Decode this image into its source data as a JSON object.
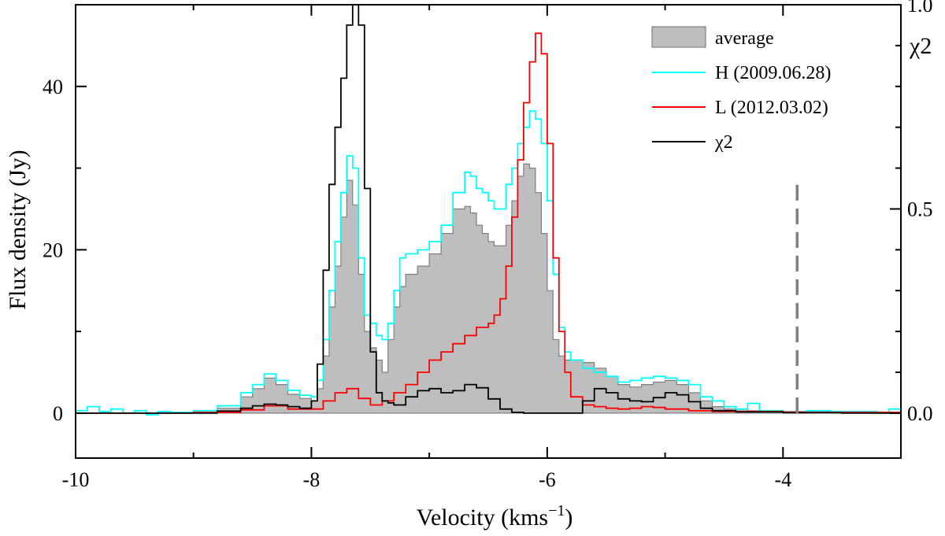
{
  "chart_data": {
    "type": "line",
    "step": true,
    "xlabel": "Velocity (kms",
    "xlabel_sup": "−1",
    "xlabel_close": ")",
    "ylabel": "Flux density (Jy)",
    "y2label": "χ2",
    "xlim": [
      -10,
      -3
    ],
    "ylim": [
      -5.5,
      50
    ],
    "y2lim": [
      -0.11,
      1.0
    ],
    "x_ticks": [
      -10,
      -8,
      -6,
      -4
    ],
    "x_tick_labels": [
      "-10",
      "-8",
      "-6",
      "-4"
    ],
    "y_ticks": [
      0,
      20,
      40
    ],
    "y_tick_labels": [
      "0",
      "20",
      "40"
    ],
    "y2_ticks": [
      0.0,
      0.5,
      1.0
    ],
    "y2_tick_labels": [
      "0.0",
      "0.5",
      "1.0"
    ],
    "vline": {
      "x": -3.88,
      "ymin": 0,
      "ymax": 28.5,
      "color": "#808080",
      "dashed": true
    },
    "legend_position": "top-right",
    "series": [
      {
        "name": "average",
        "style": "filled",
        "color": "#bebebe",
        "edge": "#7f7f7f",
        "x": [
          -10.0,
          -9.5,
          -9.0,
          -8.8,
          -8.6,
          -8.5,
          -8.4,
          -8.3,
          -8.2,
          -8.1,
          -8.0,
          -7.95,
          -7.9,
          -7.85,
          -7.8,
          -7.75,
          -7.7,
          -7.65,
          -7.6,
          -7.55,
          -7.5,
          -7.45,
          -7.4,
          -7.35,
          -7.3,
          -7.25,
          -7.2,
          -7.1,
          -7.0,
          -6.9,
          -6.8,
          -6.7,
          -6.65,
          -6.6,
          -6.55,
          -6.5,
          -6.45,
          -6.4,
          -6.35,
          -6.3,
          -6.25,
          -6.2,
          -6.15,
          -6.1,
          -6.05,
          -6.0,
          -5.95,
          -5.9,
          -5.85,
          -5.8,
          -5.7,
          -5.6,
          -5.5,
          -5.4,
          -5.3,
          -5.2,
          -5.1,
          -5.0,
          -4.9,
          -4.8,
          -4.7,
          -4.6,
          -4.5,
          -4.3,
          -4.0,
          -3.5,
          -3.0
        ],
        "y": [
          0,
          0,
          0.1,
          0.6,
          2.0,
          3.0,
          4.3,
          3.5,
          2.3,
          1.8,
          1.5,
          3.0,
          7.0,
          13.0,
          18.0,
          24.0,
          28.5,
          25.5,
          17.0,
          10.0,
          8.0,
          6.5,
          5.0,
          9.0,
          13.0,
          15.5,
          17.0,
          18.0,
          19.5,
          22.0,
          25.0,
          25.3,
          24.5,
          23.0,
          22.0,
          21.0,
          20.5,
          20.5,
          23.0,
          26.0,
          29.0,
          30.5,
          30.0,
          27.0,
          22.0,
          15.0,
          9.0,
          7.0,
          6.5,
          6.5,
          6.2,
          5.5,
          4.5,
          3.5,
          3.2,
          3.5,
          3.8,
          4.0,
          3.5,
          2.5,
          1.5,
          0.8,
          0.5,
          0.3,
          0.2,
          0.1,
          0.1
        ]
      },
      {
        "name": "H (2009.06.28)",
        "style": "step",
        "color": "#00ffff",
        "x": [
          -10.0,
          -9.9,
          -9.8,
          -9.7,
          -9.6,
          -9.5,
          -9.4,
          -9.3,
          -9.2,
          -9.0,
          -8.8,
          -8.6,
          -8.5,
          -8.4,
          -8.3,
          -8.2,
          -8.1,
          -8.0,
          -7.95,
          -7.9,
          -7.85,
          -7.8,
          -7.75,
          -7.7,
          -7.65,
          -7.6,
          -7.55,
          -7.5,
          -7.45,
          -7.4,
          -7.35,
          -7.3,
          -7.25,
          -7.2,
          -7.1,
          -7.0,
          -6.9,
          -6.8,
          -6.7,
          -6.65,
          -6.6,
          -6.55,
          -6.5,
          -6.45,
          -6.4,
          -6.35,
          -6.3,
          -6.25,
          -6.2,
          -6.15,
          -6.1,
          -6.05,
          -6.0,
          -5.95,
          -5.9,
          -5.85,
          -5.8,
          -5.7,
          -5.6,
          -5.5,
          -5.4,
          -5.3,
          -5.2,
          -5.1,
          -5.0,
          -4.9,
          -4.8,
          -4.7,
          -4.6,
          -4.5,
          -4.4,
          -4.3,
          -4.2,
          -4.0,
          -3.8,
          -3.6,
          -3.4,
          -3.2,
          -3.1,
          -3.0
        ],
        "y": [
          0.3,
          0.8,
          0.2,
          0.5,
          0.0,
          0.3,
          -0.2,
          0.2,
          0.1,
          0.3,
          0.9,
          2.5,
          3.5,
          4.8,
          4.0,
          2.8,
          2.2,
          2.0,
          4.0,
          9.0,
          15.0,
          21.0,
          27.0,
          31.5,
          30.0,
          19.0,
          12.0,
          11.0,
          9.5,
          9.0,
          11.0,
          15.0,
          19.0,
          19.5,
          20.0,
          21.0,
          23.0,
          27.0,
          29.5,
          29.0,
          27.5,
          27.0,
          26.0,
          25.0,
          25.0,
          28.0,
          30.0,
          33.0,
          35.0,
          37.0,
          36.0,
          33.0,
          26.0,
          17.0,
          10.5,
          7.5,
          6.5,
          5.5,
          5.0,
          4.5,
          3.8,
          4.0,
          4.3,
          4.5,
          4.3,
          4.0,
          3.5,
          2.0,
          1.5,
          0.8,
          0.5,
          1.2,
          0.3,
          0.1,
          0.3,
          0.2,
          0.2,
          0.1,
          0.5,
          0.3
        ]
      },
      {
        "name": "L (2012.03.02)",
        "style": "step",
        "color": "#ff0000",
        "x": [
          -10.0,
          -9.0,
          -8.6,
          -8.4,
          -8.2,
          -8.0,
          -7.9,
          -7.8,
          -7.7,
          -7.6,
          -7.5,
          -7.4,
          -7.3,
          -7.2,
          -7.1,
          -7.0,
          -6.9,
          -6.8,
          -6.7,
          -6.6,
          -6.5,
          -6.45,
          -6.4,
          -6.35,
          -6.3,
          -6.25,
          -6.2,
          -6.15,
          -6.1,
          -6.05,
          -6.0,
          -5.95,
          -5.9,
          -5.85,
          -5.8,
          -5.7,
          -5.6,
          -5.5,
          -5.4,
          -5.3,
          -5.2,
          -5.1,
          -5.0,
          -4.9,
          -4.8,
          -4.6,
          -4.4,
          -4.0,
          -3.5,
          -3.0
        ],
        "y": [
          0,
          0.1,
          0.4,
          0.9,
          0.5,
          0.5,
          1.5,
          2.5,
          3.0,
          1.8,
          1.0,
          1.5,
          2.5,
          3.5,
          5.0,
          6.5,
          7.5,
          8.5,
          9.5,
          10.5,
          11.0,
          12.0,
          14.0,
          18.0,
          24.0,
          31.0,
          38.0,
          43.0,
          46.5,
          44.0,
          33.0,
          19.0,
          10.0,
          5.0,
          2.0,
          1.0,
          0.8,
          0.6,
          0.5,
          0.6,
          0.8,
          0.7,
          0.5,
          0.5,
          0.3,
          0.2,
          0.2,
          0.1,
          0.1,
          0.1
        ]
      },
      {
        "name": "χ2",
        "style": "step",
        "color": "#000000",
        "axis": "right",
        "x": [
          -10.0,
          -9.0,
          -8.8,
          -8.6,
          -8.5,
          -8.4,
          -8.3,
          -8.2,
          -8.1,
          -8.0,
          -7.95,
          -7.9,
          -7.85,
          -7.8,
          -7.75,
          -7.7,
          -7.65,
          -7.6,
          -7.55,
          -7.5,
          -7.45,
          -7.4,
          -7.35,
          -7.3,
          -7.2,
          -7.1,
          -7.0,
          -6.9,
          -6.8,
          -6.7,
          -6.6,
          -6.5,
          -6.4,
          -6.3,
          -6.2,
          -6.0,
          -5.8,
          -5.7,
          -5.6,
          -5.5,
          -5.4,
          -5.3,
          -5.2,
          -5.1,
          -5.0,
          -4.9,
          -4.8,
          -4.7,
          -4.6,
          -4.4,
          -4.0,
          -3.5,
          -3.0
        ],
        "y": [
          0.0,
          0.0,
          0.005,
          0.012,
          0.018,
          0.022,
          0.02,
          0.016,
          0.012,
          0.03,
          0.12,
          0.35,
          0.56,
          0.7,
          0.82,
          0.95,
          1.0,
          0.95,
          0.55,
          0.15,
          0.05,
          0.03,
          0.025,
          0.02,
          0.04,
          0.055,
          0.06,
          0.05,
          0.055,
          0.07,
          0.062,
          0.035,
          0.01,
          0.002,
          0.0,
          0.0,
          0.0,
          0.03,
          0.06,
          0.05,
          0.035,
          0.03,
          0.028,
          0.038,
          0.05,
          0.045,
          0.028,
          0.012,
          0.006,
          0.003,
          0.001,
          0.0,
          0.0
        ]
      }
    ]
  }
}
